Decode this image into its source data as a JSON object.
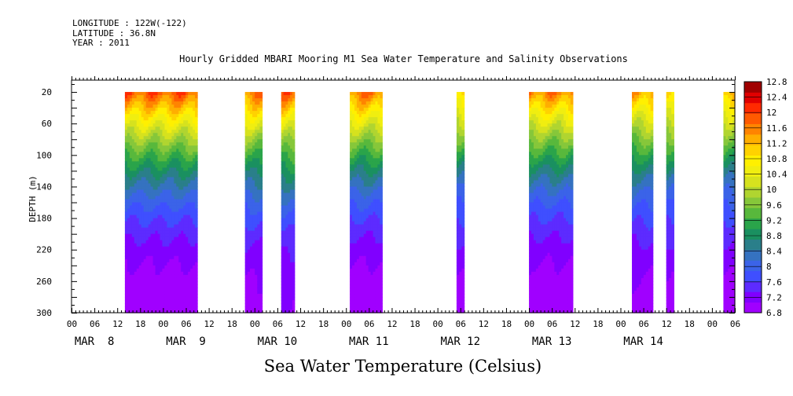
{
  "header": {
    "longitude": "LONGITUDE : 122W(-122)",
    "latitude": "LATITUDE : 36.8N",
    "year": "YEAR : 2011",
    "title": "Hourly Gridded MBARI Mooring M1 Sea Water Temperature and Salinity Observations"
  },
  "footer": {
    "variable_title": "Sea Water Temperature (Celsius)"
  },
  "chart_data": {
    "type": "heatmap",
    "title": "Hourly Gridded MBARI Mooring M1 Sea Water Temperature and Salinity Observations",
    "xlabel": "",
    "ylabel": "DEPTH (m)",
    "x_unit": "hours since MAR 8 00:00 (2011)",
    "xlim_hours": [
      0,
      174
    ],
    "ylim": [
      300,
      5
    ],
    "y_inverted": true,
    "y_ticks": [
      20,
      60,
      100,
      140,
      180,
      220,
      260,
      300
    ],
    "x_hour_tick_labels": [
      "00",
      "06",
      "12",
      "18"
    ],
    "x_day_labels": [
      "MAR  8",
      "MAR  9",
      "MAR 10",
      "MAR 11",
      "MAR 12",
      "MAR 13",
      "MAR 14"
    ],
    "data_top_depth": 20,
    "data_bottom_depth": 300,
    "colorbar": {
      "levels": [
        6.8,
        7.2,
        7.6,
        8,
        8.4,
        8.8,
        9.2,
        9.6,
        10,
        10.4,
        10.8,
        11.2,
        11.6,
        12,
        12.4,
        12.8
      ],
      "colors": [
        "#a000ff",
        "#8000ff",
        "#5d2bff",
        "#3f4fff",
        "#3b63e8",
        "#3572c0",
        "#2a7f8a",
        "#1a9060",
        "#2aa44a",
        "#58b83c",
        "#86c73a",
        "#b0d530",
        "#d6e21e",
        "#f0ee10",
        "#fff000",
        "#ffd200",
        "#ffae00",
        "#ff8400",
        "#ff5a00",
        "#ff2a00",
        "#e00000",
        "#a00000"
      ]
    },
    "segments": [
      {
        "start_hour": 14.0,
        "end_hour": 33.0,
        "surface_temp": 11.9,
        "bottom_temp": 6.9
      },
      {
        "start_hour": 45.5,
        "end_hour": 50.0,
        "surface_temp": 11.7,
        "bottom_temp": 7.0
      },
      {
        "start_hour": 55.0,
        "end_hour": 58.5,
        "surface_temp": 11.8,
        "bottom_temp": 7.1
      },
      {
        "start_hour": 73.0,
        "end_hour": 81.5,
        "surface_temp": 11.7,
        "bottom_temp": 6.9
      },
      {
        "start_hour": 101.0,
        "end_hour": 103.0,
        "surface_temp": 11.2,
        "bottom_temp": 7.0
      },
      {
        "start_hour": 120.0,
        "end_hour": 131.5,
        "surface_temp": 11.6,
        "bottom_temp": 6.9
      },
      {
        "start_hour": 147.0,
        "end_hour": 152.5,
        "surface_temp": 11.4,
        "bottom_temp": 7.0
      },
      {
        "start_hour": 156.0,
        "end_hour": 158.0,
        "surface_temp": 11.3,
        "bottom_temp": 7.0
      },
      {
        "start_hour": 171.0,
        "end_hour": 174.0,
        "surface_temp": 11.3,
        "bottom_temp": 7.0
      }
    ]
  }
}
